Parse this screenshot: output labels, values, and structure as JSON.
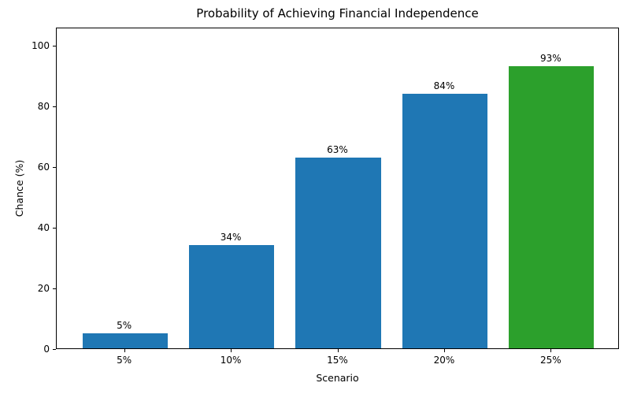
{
  "chart_data": {
    "type": "bar",
    "title": "Probability of Achieving Financial Independence",
    "xlabel": "Scenario",
    "ylabel": "Chance (%)",
    "categories": [
      "5%",
      "10%",
      "15%",
      "20%",
      "25%"
    ],
    "values": [
      5,
      34,
      63,
      84,
      93
    ],
    "bar_labels": [
      "5%",
      "34%",
      "63%",
      "84%",
      "93%"
    ],
    "bar_colors": [
      "#1f77b4",
      "#1f77b4",
      "#1f77b4",
      "#1f77b4",
      "#2ca02c"
    ],
    "yticks": [
      0,
      20,
      40,
      60,
      80,
      100
    ],
    "ytick_labels": [
      "0",
      "20",
      "40",
      "60",
      "80",
      "100"
    ],
    "ylim": [
      0,
      106
    ],
    "xlim": [
      -0.64,
      4.64
    ],
    "bar_width_units": 0.8,
    "grid": false,
    "legend": "none",
    "frame_color": "#000000",
    "text_color": "#000000",
    "background_color": "#ffffff"
  }
}
